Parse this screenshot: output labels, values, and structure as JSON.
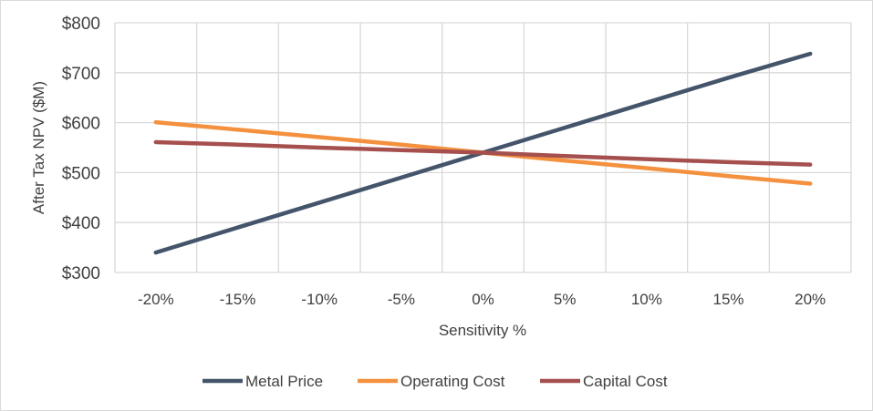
{
  "chart_data": {
    "type": "line",
    "categories": [
      "-20%",
      "-15%",
      "-10%",
      "-5%",
      "0%",
      "5%",
      "10%",
      "15%",
      "20%"
    ],
    "x": [
      -20,
      -15,
      -10,
      -5,
      0,
      5,
      10,
      15,
      20
    ],
    "series": [
      {
        "name": "Metal Price",
        "color": "#44546a",
        "values": [
          340,
          390,
          440,
          490,
          540,
          590,
          640,
          690,
          738
        ]
      },
      {
        "name": "Operating Cost",
        "color": "#f4913e",
        "values": [
          601,
          586,
          571,
          556,
          540,
          524,
          509,
          493,
          478
        ]
      },
      {
        "name": "Capital Cost",
        "color": "#a5504e",
        "values": [
          561,
          556,
          550,
          545,
          540,
          533,
          527,
          521,
          516
        ]
      }
    ],
    "title": "",
    "xlabel": "Sensitivity %",
    "ylabel": "After Tax NPV ($M)",
    "ylim": [
      300,
      800
    ],
    "yticks": [
      300,
      400,
      500,
      600,
      700,
      800
    ],
    "ytick_labels": [
      "$300",
      "$400",
      "$500",
      "$600",
      "$700",
      "$800"
    ],
    "grid": true,
    "legend": "bottom-center"
  }
}
